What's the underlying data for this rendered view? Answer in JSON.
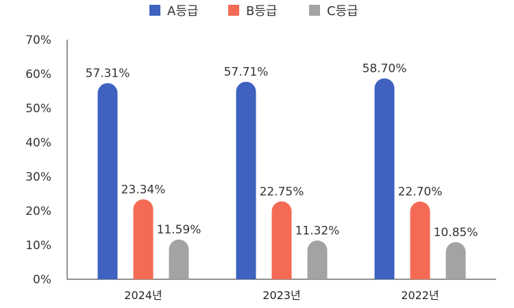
{
  "chart_data": {
    "type": "bar",
    "categories": [
      "2024년",
      "2023년",
      "2022년"
    ],
    "series": [
      {
        "name": "A등급",
        "color": "#3F62C0",
        "values": [
          57.31,
          57.71,
          58.7
        ],
        "labels": [
          "57.31%",
          "57.71%",
          "58.70%"
        ]
      },
      {
        "name": "B등급",
        "color": "#F46A55",
        "values": [
          23.34,
          22.75,
          22.7
        ],
        "labels": [
          "23.34%",
          "22.75%",
          "22.70%"
        ]
      },
      {
        "name": "C등급",
        "color": "#A3A3A3",
        "values": [
          11.59,
          11.32,
          10.85
        ],
        "labels": [
          "11.59%",
          "11.32%",
          "10.85%"
        ]
      }
    ],
    "ylim": [
      0,
      70
    ],
    "yticks": [
      0,
      10,
      20,
      30,
      40,
      50,
      60,
      70
    ],
    "ytick_labels": [
      "0%",
      "10%",
      "20%",
      "30%",
      "40%",
      "50%",
      "60%",
      "70%"
    ],
    "title": "",
    "xlabel": "",
    "ylabel": "",
    "grid": false,
    "legend_position": "top-center"
  }
}
